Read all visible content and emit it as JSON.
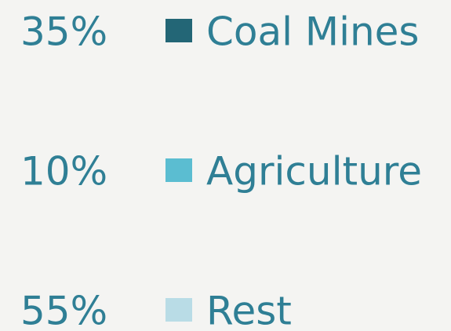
{
  "text_color": "#2f7f95",
  "items": [
    {
      "percent": "35%",
      "label": "Coal Mines",
      "color": "#236676"
    },
    {
      "percent": "10%",
      "label": "Agriculture",
      "color": "#5bbdd1"
    },
    {
      "percent": "55%",
      "label": "Rest",
      "color": "#b9dce6"
    }
  ]
}
